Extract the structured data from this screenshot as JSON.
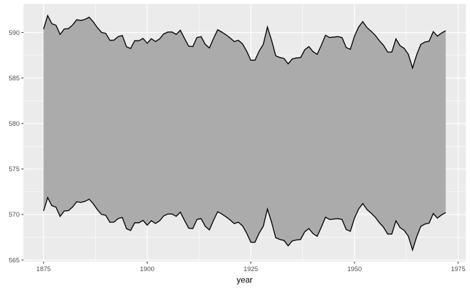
{
  "chart_data": {
    "type": "area",
    "variant": "ribbon",
    "title": "",
    "xlabel": "year",
    "ylabel": "",
    "legend": "none",
    "grid": "on",
    "x_range": {
      "from": 1875,
      "to": 1972,
      "step": 1
    },
    "level": [
      580.38,
      581.86,
      580.97,
      580.8,
      579.79,
      580.39,
      580.42,
      580.82,
      581.4,
      581.32,
      581.44,
      581.68,
      581.17,
      580.53,
      580.01,
      579.91,
      579.14,
      579.16,
      579.55,
      579.67,
      578.44,
      578.24,
      579.1,
      579.09,
      579.35,
      578.82,
      579.32,
      579.01,
      579.3,
      579.85,
      580.05,
      580.05,
      579.8,
      580.25,
      579.35,
      578.5,
      578.45,
      579.45,
      579.55,
      578.7,
      578.3,
      579.35,
      580.3,
      580.05,
      579.75,
      579.4,
      579.0,
      579.15,
      578.75,
      577.95,
      576.95,
      576.95,
      577.95,
      578.7,
      580.6,
      579.15,
      577.45,
      577.25,
      577.15,
      576.55,
      577.1,
      577.2,
      577.25,
      578.1,
      578.45,
      577.9,
      577.6,
      578.6,
      579.7,
      579.45,
      579.5,
      579.55,
      579.45,
      578.35,
      578.15,
      579.6,
      580.6,
      581.2,
      580.55,
      580.15,
      579.7,
      579.1,
      578.6,
      577.85,
      577.85,
      579.3,
      578.55,
      578.25,
      577.6,
      576.1,
      577.55,
      578.7,
      578.95,
      579.05,
      580.1,
      579.6,
      579.95,
      580.2
    ],
    "ribbon_offset": 10,
    "x_ticks": [
      1875,
      1900,
      1925,
      1950,
      1975
    ],
    "y_ticks": [
      565,
      570,
      575,
      580,
      585,
      590
    ],
    "x_minor_ticks": [
      1887.5,
      1912.5,
      1937.5,
      1962.5
    ],
    "y_minor_ticks": [
      567.5,
      572.5,
      577.5,
      582.5,
      587.5
    ],
    "x_domain": [
      1870.15,
      1976.85
    ],
    "y_domain": [
      564.81,
      593.15
    ],
    "colors": {
      "plot_bg": "#FFFFFF",
      "panel_bg": "#EBEBEB",
      "grid_major": "#FFFFFF",
      "grid_minor": "#FFFFFF",
      "ribbon_fill": "#ABABAB",
      "edge_line": "#000000",
      "tick_mark": "#333333",
      "tick_label": "#4D4D4D",
      "axis_title": "#000000"
    }
  }
}
